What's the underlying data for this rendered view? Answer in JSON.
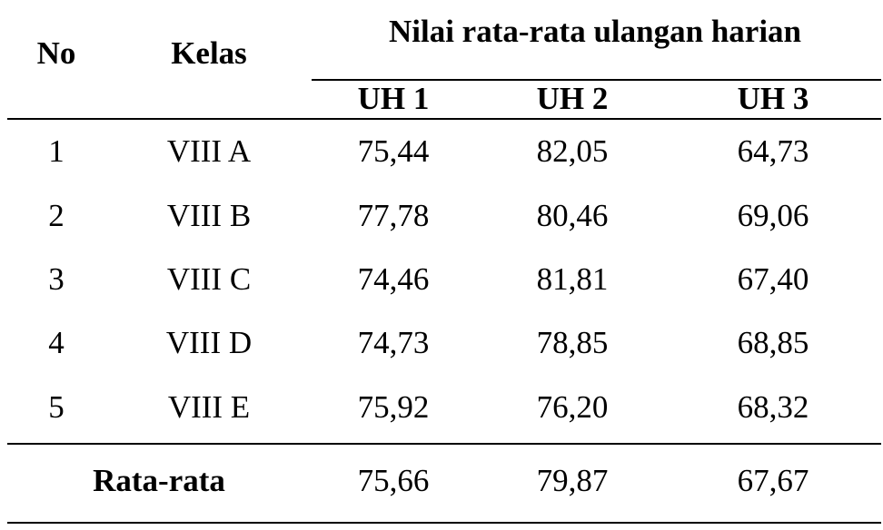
{
  "table": {
    "header": {
      "no": "No",
      "kelas": "Kelas",
      "group": "Nilai rata-rata ulangan harian",
      "columns": [
        "UH 1",
        "UH 2",
        "UH 3"
      ]
    },
    "rows": [
      [
        "1",
        "VIII A",
        "75,44",
        "82,05",
        "64,73"
      ],
      [
        "2",
        "VIII B",
        "77,78",
        "80,46",
        "69,06"
      ],
      [
        "3",
        "VIII C",
        "74,46",
        "81,81",
        "67,40"
      ],
      [
        "4",
        "VIII D",
        "74,73",
        "78,85",
        "68,85"
      ],
      [
        "5",
        "VIII E",
        "75,92",
        "76,20",
        "68,32"
      ]
    ],
    "footer": {
      "label": "Rata-rata",
      "values": [
        "75,66",
        "79,87",
        "67,67"
      ]
    }
  }
}
